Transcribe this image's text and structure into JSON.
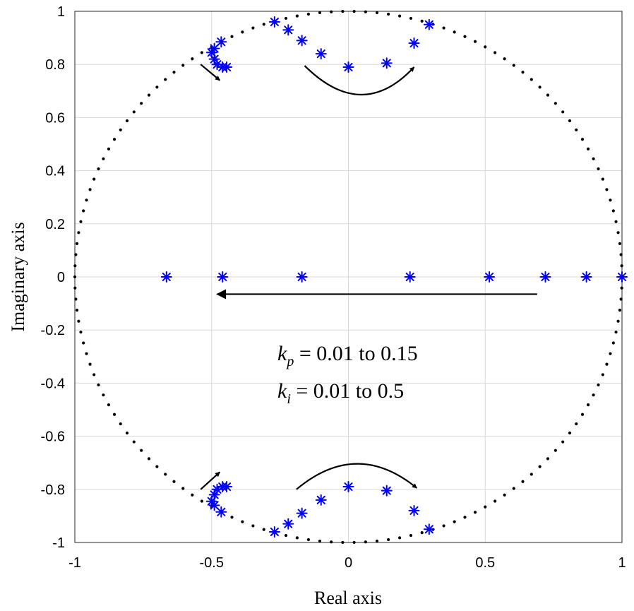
{
  "chart_data": {
    "type": "scatter",
    "title": "",
    "xlabel": "Real axis",
    "ylabel": "Imaginary axis",
    "xlim": [
      -1,
      1
    ],
    "ylim": [
      -1,
      1
    ],
    "grid": true,
    "xticks": [
      "-1",
      "-0.5",
      "0",
      "0.5",
      "1"
    ],
    "yticks": [
      "1",
      "0.8",
      "0.6",
      "0.4",
      "0.2",
      "0",
      "-0.2",
      "-0.4",
      "-0.6",
      "-0.8",
      "-1"
    ],
    "unit_circle": {
      "radius": 1,
      "style": "dotted",
      "color": "#000000"
    },
    "series": [
      {
        "marker": "asterisk",
        "color": "#0000ff",
        "points": [
          [
            -0.27,
            0.96
          ],
          [
            -0.22,
            0.93
          ],
          [
            -0.17,
            0.89
          ],
          [
            -0.1,
            0.84
          ],
          [
            0.0,
            0.79
          ],
          [
            0.14,
            0.805
          ],
          [
            0.24,
            0.88
          ],
          [
            0.295,
            0.95
          ],
          [
            -0.5,
            0.845
          ],
          [
            -0.49,
            0.86
          ],
          [
            -0.49,
            0.82
          ],
          [
            -0.48,
            0.8
          ],
          [
            -0.465,
            0.885
          ],
          [
            -0.46,
            0.79
          ],
          [
            -0.445,
            0.79
          ],
          [
            -0.27,
            -0.96
          ],
          [
            -0.22,
            -0.93
          ],
          [
            -0.17,
            -0.89
          ],
          [
            -0.1,
            -0.84
          ],
          [
            0.0,
            -0.79
          ],
          [
            0.14,
            -0.805
          ],
          [
            0.24,
            -0.88
          ],
          [
            0.295,
            -0.95
          ],
          [
            -0.5,
            -0.845
          ],
          [
            -0.49,
            -0.86
          ],
          [
            -0.49,
            -0.82
          ],
          [
            -0.48,
            -0.8
          ],
          [
            -0.465,
            -0.885
          ],
          [
            -0.46,
            -0.79
          ],
          [
            -0.445,
            -0.79
          ],
          [
            -0.665,
            0
          ],
          [
            -0.46,
            0
          ],
          [
            -0.17,
            0
          ],
          [
            0.225,
            0
          ],
          [
            0.515,
            0
          ],
          [
            0.72,
            0
          ],
          [
            0.87,
            0
          ],
          [
            1.0,
            0
          ]
        ]
      }
    ],
    "arrows": [
      {
        "kind": "straight",
        "from": [
          0.69,
          -0.065
        ],
        "to": [
          -0.48,
          -0.065
        ]
      },
      {
        "kind": "straight",
        "from": [
          -0.54,
          0.8
        ],
        "to": [
          -0.47,
          0.74
        ]
      },
      {
        "kind": "straight",
        "from": [
          -0.54,
          -0.8
        ],
        "to": [
          -0.47,
          -0.735
        ]
      },
      {
        "kind": "curved",
        "from": [
          -0.16,
          0.795
        ],
        "control": [
          0.05,
          0.58
        ],
        "to": [
          0.24,
          0.79
        ]
      },
      {
        "kind": "curved",
        "from": [
          -0.19,
          -0.8
        ],
        "control": [
          0.03,
          -0.61
        ],
        "to": [
          0.25,
          -0.795
        ]
      }
    ],
    "annotations": {
      "kp": {
        "symbol": "k",
        "subscript": "p",
        "text": " = 0.01 to 0.15"
      },
      "ki": {
        "symbol": "k",
        "subscript": "i",
        "text": " = 0.01 to 0.5"
      }
    }
  }
}
